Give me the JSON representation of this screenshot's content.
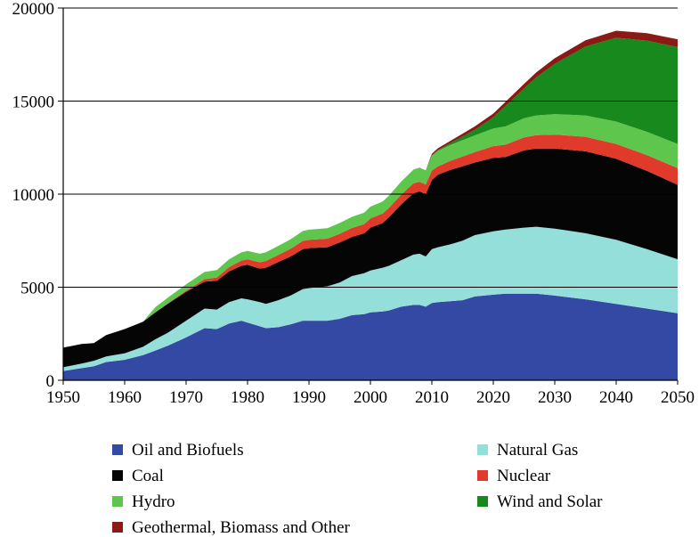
{
  "chart_data": {
    "type": "area",
    "stacked": true,
    "title": "",
    "xlabel": "",
    "ylabel": "",
    "xlim": [
      1950,
      2050
    ],
    "ylim": [
      0,
      20000
    ],
    "xticks": [
      "1950",
      "1960",
      "1970",
      "1980",
      "1990",
      "2000",
      "2010",
      "2020",
      "2030",
      "2040",
      "2050"
    ],
    "yticks": [
      "0",
      "5000",
      "10000",
      "15000",
      "20000"
    ],
    "grid": "horizontal",
    "legend_position": "bottom",
    "x": [
      1950,
      1953,
      1955,
      1957,
      1960,
      1963,
      1965,
      1967,
      1970,
      1973,
      1975,
      1977,
      1979,
      1980,
      1982,
      1983,
      1985,
      1987,
      1989,
      1990,
      1993,
      1995,
      1997,
      1999,
      2000,
      2002,
      2003,
      2005,
      2007,
      2008,
      2009,
      2010,
      2011,
      2013,
      2015,
      2017,
      2020,
      2022,
      2025,
      2027,
      2030,
      2035,
      2040,
      2045,
      2050
    ],
    "series": [
      {
        "name": "Oil and Biofuels",
        "color": "#3449a3",
        "values": [
          500,
          650,
          750,
          980,
          1100,
          1350,
          1600,
          1850,
          2300,
          2800,
          2750,
          3050,
          3200,
          3100,
          2900,
          2800,
          2850,
          3000,
          3200,
          3200,
          3200,
          3300,
          3500,
          3550,
          3650,
          3700,
          3750,
          3950,
          4050,
          4050,
          3950,
          4150,
          4200,
          4250,
          4300,
          4500,
          4600,
          4650,
          4650,
          4650,
          4550,
          4350,
          4100,
          3850,
          3600
        ]
      },
      {
        "name": "Natural Gas",
        "color": "#94dfd9",
        "values": [
          200,
          250,
          300,
          300,
          350,
          450,
          600,
          700,
          900,
          1050,
          1050,
          1150,
          1200,
          1250,
          1300,
          1300,
          1450,
          1550,
          1700,
          1750,
          1850,
          1950,
          2100,
          2200,
          2250,
          2350,
          2400,
          2500,
          2700,
          2750,
          2700,
          2900,
          2950,
          3050,
          3200,
          3300,
          3400,
          3450,
          3550,
          3600,
          3600,
          3550,
          3450,
          3200,
          2900
        ]
      },
      {
        "name": "Coal",
        "color": "#050505",
        "values": [
          1050,
          1050,
          950,
          1150,
          1300,
          1350,
          1450,
          1550,
          1550,
          1450,
          1550,
          1650,
          1750,
          1850,
          1800,
          1950,
          2050,
          2100,
          2150,
          2150,
          2100,
          2150,
          2100,
          2150,
          2300,
          2400,
          2600,
          3000,
          3300,
          3350,
          3350,
          3700,
          3900,
          4000,
          4000,
          3900,
          3950,
          3900,
          4150,
          4200,
          4300,
          4400,
          4350,
          4200,
          4000
        ]
      },
      {
        "name": "Nuclear",
        "color": "#e03a2a",
        "values": [
          0,
          0,
          0,
          0,
          0,
          0,
          10,
          30,
          60,
          130,
          170,
          230,
          280,
          300,
          340,
          360,
          380,
          410,
          440,
          450,
          460,
          470,
          480,
          490,
          500,
          510,
          510,
          520,
          530,
          520,
          510,
          520,
          450,
          490,
          520,
          560,
          630,
          660,
          700,
          720,
          750,
          780,
          800,
          850,
          900
        ]
      },
      {
        "name": "Hydro",
        "color": "#5ec64d",
        "values": [
          0,
          0,
          0,
          0,
          0,
          0,
          270,
          300,
          350,
          390,
          400,
          420,
          440,
          450,
          460,
          470,
          490,
          510,
          530,
          540,
          560,
          580,
          600,
          620,
          630,
          650,
          660,
          700,
          730,
          740,
          750,
          800,
          830,
          850,
          880,
          900,
          950,
          980,
          1030,
          1060,
          1100,
          1150,
          1200,
          1250,
          1300
        ]
      },
      {
        "name": "Wind and Solar",
        "color": "#17891d",
        "values": [
          0,
          0,
          0,
          0,
          0,
          0,
          0,
          0,
          0,
          0,
          0,
          0,
          0,
          0,
          0,
          0,
          0,
          0,
          0,
          0,
          0,
          0,
          0,
          0,
          0,
          0,
          0,
          0,
          5,
          10,
          15,
          20,
          40,
          100,
          200,
          300,
          600,
          1100,
          1600,
          2050,
          2700,
          3700,
          4500,
          4900,
          5200
        ]
      },
      {
        "name": "Geothermal, Biomass and Other",
        "color": "#8b1a14",
        "values": [
          0,
          0,
          0,
          0,
          0,
          0,
          0,
          0,
          0,
          0,
          0,
          0,
          0,
          0,
          0,
          0,
          0,
          0,
          0,
          0,
          0,
          0,
          0,
          0,
          0,
          0,
          0,
          0,
          0,
          0,
          0,
          80,
          100,
          120,
          150,
          180,
          200,
          220,
          240,
          260,
          300,
          340,
          380,
          400,
          420
        ]
      }
    ]
  }
}
